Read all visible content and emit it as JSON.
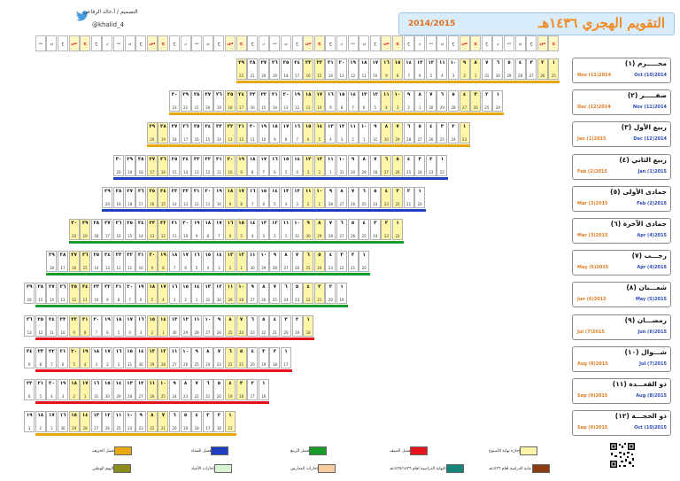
{
  "header": {
    "title": "التقويم الهجري ١٤٣٦هـ",
    "year_range": "2014/2015",
    "designer": "التصميم / أ.خالد الرفاعي",
    "handle": "@khalid_4"
  },
  "weekdays": [
    "ج",
    "س",
    "ح",
    "ن",
    "ث",
    "ر",
    "خ",
    "ج",
    "س",
    "ح",
    "ن",
    "ث",
    "ر",
    "خ",
    "ج",
    "س",
    "ح",
    "ن",
    "ث",
    "ر",
    "خ",
    "ج",
    "س",
    "ح",
    "ن",
    "ث",
    "ر",
    "خ",
    "ج",
    "س",
    "ح",
    "ن",
    "ث",
    "ر",
    "خ",
    "ج",
    "س",
    "ح",
    "ن",
    "ث",
    "ر",
    "خ",
    "ج",
    "س",
    "ح",
    "ن",
    "ث"
  ],
  "months": [
    {
      "name": "محـــــرم (١)",
      "greg_a": "Nov (11)2014",
      "greg_b": "Oct (10)2014",
      "days": 29
    },
    {
      "name": "صفـــــر (٢)",
      "greg_a": "Dec (12)2014",
      "greg_b": "Nov (11)2014",
      "days": 30
    },
    {
      "name": "ربيع الأول (٣)",
      "greg_a": "Jan (1)2015",
      "greg_b": "Dec (12)2014",
      "days": 29
    },
    {
      "name": "ربيع الثاني (٤)",
      "greg_a": "Feb (2)2015",
      "greg_b": "Jan (1)2015",
      "days": 30
    },
    {
      "name": "جمادى الأولى (٥)",
      "greg_a": "Mar (3)2015",
      "greg_b": "Feb (2)2015",
      "days": 29
    },
    {
      "name": "جمادى الآخرة (٦)",
      "greg_a": "Mar (3)2015",
      "greg_b": "Apr (4)2015",
      "days": 30
    },
    {
      "name": "رجـــب (٧)",
      "greg_a": "May (5)2015",
      "greg_b": "Apr (4)2015",
      "days": 29
    },
    {
      "name": "شعـــبان (٨)",
      "greg_a": "Jun (6)2015",
      "greg_b": "May (5)2015",
      "days": 30
    },
    {
      "name": "رمضـــان (٩)",
      "greg_a": "Jul (7)2015",
      "greg_b": "Jun (6)2015",
      "days": 29
    },
    {
      "name": "شـــوال (١٠)",
      "greg_a": "Aug (8)2015",
      "greg_b": "Jul (7)2015",
      "days": 29
    },
    {
      "name": "ذو القعـــدة (١١)",
      "greg_a": "Sep (9)2015",
      "greg_b": "Aug (8)2015",
      "days": 29
    },
    {
      "name": "ذو الحجـــة (١٢)",
      "greg_a": "Sep (9)2015",
      "greg_b": "Oct (10)2015",
      "days": 30
    }
  ],
  "legend": [
    {
      "label": "إجازة نهاية الأسبوع",
      "color": "#fff6a8"
    },
    {
      "label": "فصل الصيف",
      "color": "#e5121b"
    },
    {
      "label": "فصل الربيع",
      "color": "#1a9a2a"
    },
    {
      "label": "فصل الشتاء",
      "color": "#1c3ec0"
    },
    {
      "label": "فصل الخريف",
      "color": "#e8a80c"
    },
    {
      "label": "بداية الدراسة لعام ١٤٣٦هـ",
      "color": "#8b3d12"
    },
    {
      "label": "النهاية الدراسية لعام ١٤٣٥/١٤٣٦هـ",
      "color": "#14847a"
    },
    {
      "label": "إجازات المدارس",
      "color": "#f7c99f"
    },
    {
      "label": "إجازات الأعياد",
      "color": "#d9f2cf"
    },
    {
      "label": "اليوم الوطني",
      "color": "#8c8c1a"
    }
  ]
}
